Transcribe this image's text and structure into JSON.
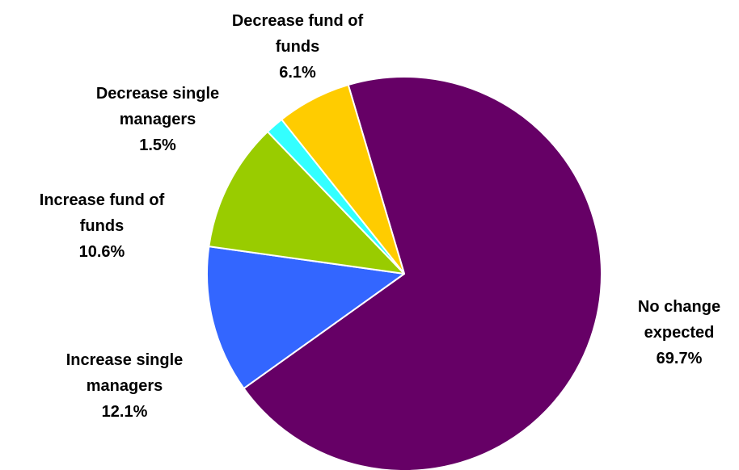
{
  "chart_data": {
    "type": "pie",
    "title": "",
    "slices": [
      {
        "id": "no-change",
        "label_lines": [
          "No change",
          "expected"
        ],
        "value_text": "69.7%",
        "value": 69.7,
        "color": "#660066"
      },
      {
        "id": "increase-single",
        "label_lines": [
          "Increase single",
          "managers"
        ],
        "value_text": "12.1%",
        "value": 12.1,
        "color": "#3366FF"
      },
      {
        "id": "increase-fof",
        "label_lines": [
          "Increase fund of",
          "funds"
        ],
        "value_text": "10.6%",
        "value": 10.6,
        "color": "#99CC00"
      },
      {
        "id": "decrease-single",
        "label_lines": [
          "Decrease single",
          "managers"
        ],
        "value_text": "1.5%",
        "value": 1.5,
        "color": "#33FFFF"
      },
      {
        "id": "decrease-fof",
        "label_lines": [
          "Decrease fund of",
          "funds"
        ],
        "value_text": "6.1%",
        "value": 6.1,
        "color": "#FFCC00"
      }
    ]
  }
}
